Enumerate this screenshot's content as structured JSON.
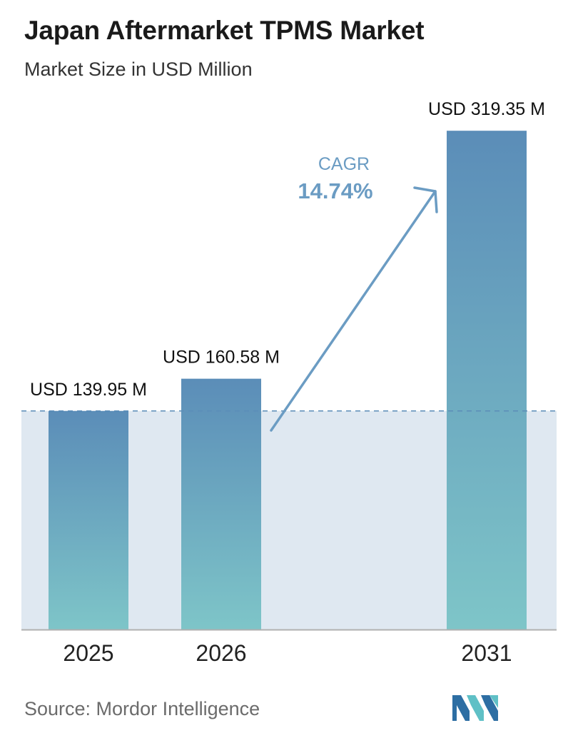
{
  "header": {
    "title": "Japan Aftermarket TPMS Market",
    "subtitle": "Market Size in USD Million"
  },
  "chart_data": {
    "type": "bar",
    "categories": [
      "2025",
      "2026",
      "2031"
    ],
    "values": [
      139.95,
      160.58,
      319.35
    ],
    "value_labels": [
      "USD 139.95 M",
      "USD 160.58 M",
      "USD 319.35 M"
    ],
    "title": "Japan Aftermarket TPMS Market",
    "subtitle": "Market Size in USD Million",
    "ylim": [
      0,
      340
    ],
    "grid": false,
    "annotation": {
      "label": "CAGR",
      "value": "14.74%"
    },
    "colors": {
      "bar_top": "#5b8db8",
      "bar_bottom": "#7ec5c8",
      "band": "#dfe8f1",
      "reference_line": "#5b8db8",
      "cagr": "#6b9cc3",
      "axis": "#b0b0b0"
    }
  },
  "footer": {
    "source": "Source: Mordor Intelligence",
    "logo_icon": "mordor-intelligence-logo"
  }
}
